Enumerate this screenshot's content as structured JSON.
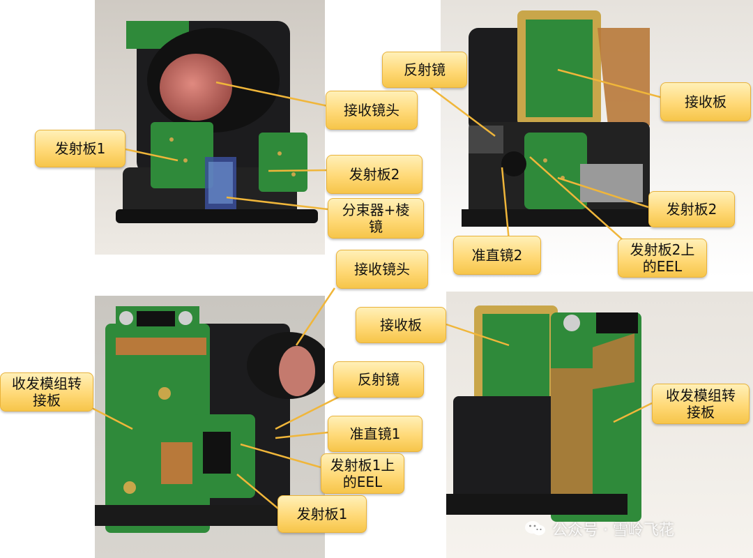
{
  "callouts": {
    "tl_receive_lens": "接收镜头",
    "tl_tx_board1": "发射板1",
    "tl_tx_board2": "发射板2",
    "tl_splitter_prism": "分束器+棱\n镜",
    "tr_mirror": "反射镜",
    "tr_rx_board": "接收板",
    "tr_tx_board2": "发射板2",
    "tr_collimator2": "准直镜2",
    "tr_eel_on_board2": "发射板2上\n的EEL",
    "bl_receive_lens": "接收镜头",
    "bl_transceiver_adapter": "收发模组转\n接板",
    "bl_mirror": "反射镜",
    "bl_collimator1": "准直镜1",
    "bl_eel_on_board1": "发射板1上\n的EEL",
    "bl_tx_board1": "发射板1",
    "br_rx_board": "接收板",
    "br_transceiver_adapter": "收发模组转\n接板"
  },
  "watermark": {
    "text": "公众号 · 雪岭飞花",
    "logo_icon": "wechat-icon"
  },
  "colors": {
    "callout_fill": "#ffd977",
    "callout_border": "#e9b23a",
    "leader_line": "#f0b63a",
    "pcb_green": "#2f8a3a",
    "gold_pad": "#c9a64a",
    "housing_black": "#1c1c1e",
    "flex_copper": "#b8793a"
  }
}
